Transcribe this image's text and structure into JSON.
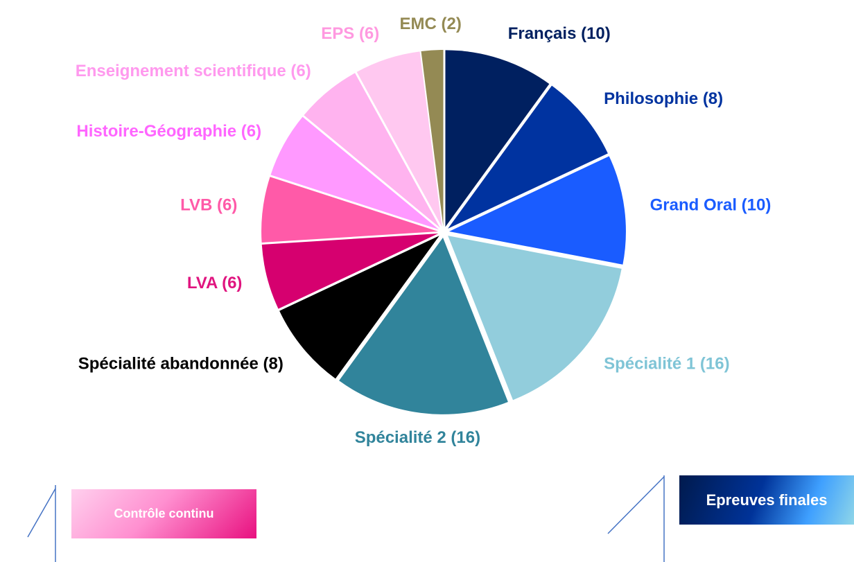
{
  "chart_data": {
    "type": "pie",
    "categories": [
      "Français (10)",
      "Philosophie (8)",
      "Grand Oral (10)",
      "Spécialité 1 (16)",
      "Spécialité 2 (16)",
      "Spécialité abandonnée  (8)",
      "LVA (6)",
      "LVB (6)",
      "Histoire-Géographie (6)",
      "Enseignement scientifique (6)",
      "EPS (6)",
      "EMC (2)"
    ],
    "values": [
      10,
      8,
      10,
      16,
      16,
      8,
      6,
      6,
      6,
      6,
      6,
      2
    ],
    "colors": [
      "#002060",
      "#0033a0",
      "#1a5cff",
      "#92cddc",
      "#31849b",
      "#000000",
      "#d6006f",
      "#ff5aa8",
      "#ff99ff",
      "#ffb3ef",
      "#ffc8f0",
      "#948a54"
    ],
    "label_colors": [
      "#002060",
      "#0033a0",
      "#1a5cff",
      "#7fc4d6",
      "#31849b",
      "#000000",
      "#e0147f",
      "#ff5aa8",
      "#ff66ff",
      "#ff99ee",
      "#ff99e0",
      "#948a54"
    ]
  },
  "buttons": [
    "Contrôle continu",
    "Epreuves finales"
  ]
}
